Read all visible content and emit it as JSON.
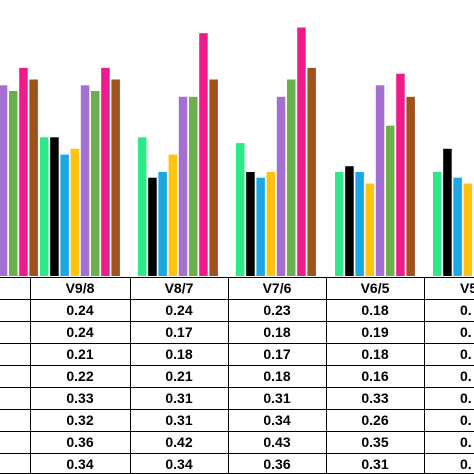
{
  "chart_data": {
    "type": "bar",
    "categories": [
      "",
      "V9/8",
      "V8/7",
      "V7/6",
      "V6/5",
      "V5"
    ],
    "series": [
      {
        "color": "#2ee88a",
        "values": [
          null,
          0.24,
          0.24,
          0.23,
          0.18,
          0.18
        ]
      },
      {
        "color": "#000000",
        "values": [
          null,
          0.24,
          0.17,
          0.18,
          0.19,
          0.22
        ]
      },
      {
        "color": "#1ba7e6",
        "values": [
          null,
          0.21,
          0.18,
          0.17,
          0.18,
          0.17
        ]
      },
      {
        "color": "#ffc20e",
        "values": [
          null,
          0.22,
          0.21,
          0.18,
          0.16,
          0.16
        ]
      },
      {
        "color": "#a46fd3",
        "values": [
          0.33,
          0.33,
          0.31,
          0.31,
          0.33,
          null
        ]
      },
      {
        "color": "#6ab04c",
        "values": [
          0.32,
          0.32,
          0.31,
          0.34,
          0.26,
          null
        ]
      },
      {
        "color": "#f01b8a",
        "values": [
          0.36,
          0.36,
          0.42,
          0.43,
          0.35,
          null
        ]
      },
      {
        "color": "#a0521d",
        "values": [
          0.34,
          0.34,
          0.34,
          0.36,
          0.31,
          null
        ]
      }
    ],
    "ylim": [
      0,
      0.45
    ],
    "table": {
      "headers": [
        "",
        "V9/8",
        "V8/7",
        "V7/6",
        "V6/5",
        "V5"
      ],
      "rows": [
        [
          "",
          "0.24",
          "0.24",
          "0.23",
          "0.18",
          "0."
        ],
        [
          "",
          "0.24",
          "0.17",
          "0.18",
          "0.19",
          "0."
        ],
        [
          "",
          "0.21",
          "0.18",
          "0.17",
          "0.18",
          "0."
        ],
        [
          "",
          "0.22",
          "0.21",
          "0.18",
          "0.16",
          "0."
        ],
        [
          "",
          "0.33",
          "0.31",
          "0.31",
          "0.33",
          "0."
        ],
        [
          "",
          "0.32",
          "0.31",
          "0.34",
          "0.26",
          "0."
        ],
        [
          "",
          "0.36",
          "0.42",
          "0.43",
          "0.35",
          "0."
        ],
        [
          "",
          "0.34",
          "0.34",
          "0.36",
          "0.31",
          "0."
        ]
      ]
    }
  }
}
